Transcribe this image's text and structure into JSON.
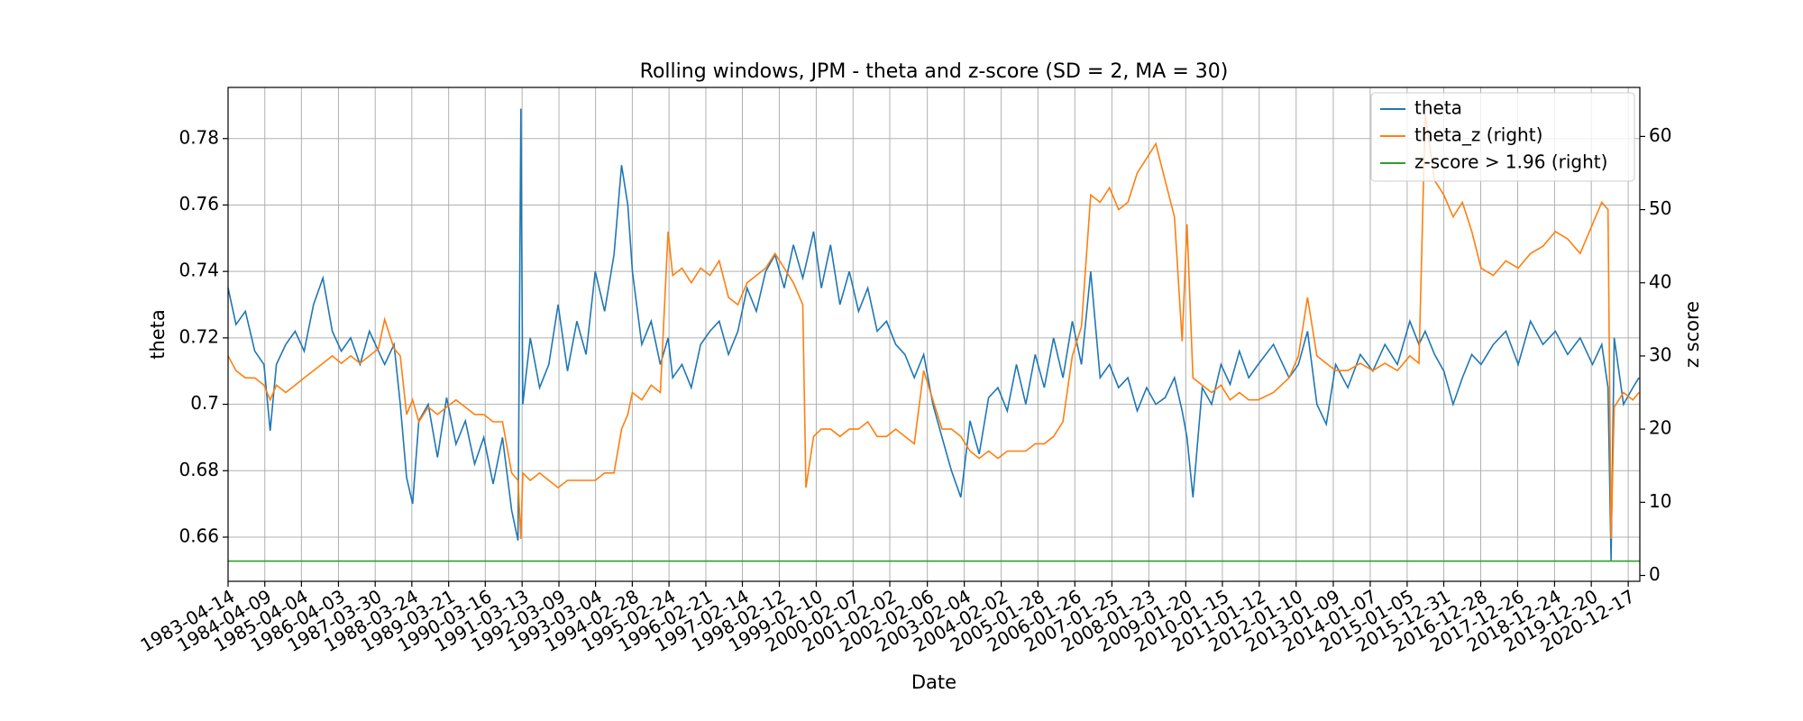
{
  "chart_data": {
    "type": "line",
    "title": "Rolling windows, JPM - theta and z-score (SD = 2, MA = 30)",
    "x_label": "Date",
    "y_label": "theta",
    "y2_label": "z score",
    "xlim": [
      "1983-04-14",
      "2021-04-10"
    ],
    "xticks": [
      "1983-04-14",
      "1984-04-09",
      "1985-04-04",
      "1986-04-03",
      "1987-03-30",
      "1988-03-24",
      "1989-03-21",
      "1990-03-16",
      "1991-03-13",
      "1992-03-09",
      "1993-03-04",
      "1994-02-28",
      "1995-02-24",
      "1996-02-21",
      "1997-02-14",
      "1998-02-12",
      "1999-02-10",
      "2000-02-07",
      "2001-02-02",
      "2002-02-06",
      "2003-02-04",
      "2004-02-02",
      "2005-01-28",
      "2006-01-26",
      "2007-01-25",
      "2008-01-23",
      "2009-01-20",
      "2010-01-15",
      "2011-01-12",
      "2012-01-10",
      "2013-01-09",
      "2014-01-07",
      "2015-01-05",
      "2015-12-31",
      "2016-12-28",
      "2017-12-26",
      "2018-12-24",
      "2019-12-20",
      "2020-12-17"
    ],
    "ylim": [
      0.6467,
      0.7954
    ],
    "yticks": [
      0.66,
      0.68,
      0.7,
      0.72,
      0.74,
      0.76,
      0.78
    ],
    "y2lim": [
      -0.8,
      66.7
    ],
    "y2ticks": [
      0,
      10,
      20,
      30,
      40,
      50,
      60
    ],
    "grid": true,
    "legend": "upper right",
    "x": [
      "1983-04-14",
      "1983-07-01",
      "1983-10-01",
      "1984-01-01",
      "1984-04-01",
      "1984-06-01",
      "1984-08-01",
      "1984-11-01",
      "1985-02-01",
      "1985-05-01",
      "1985-08-01",
      "1985-11-01",
      "1986-02-01",
      "1986-05-01",
      "1986-08-01",
      "1986-11-01",
      "1987-02-01",
      "1987-05-01",
      "1987-07-01",
      "1987-10-01",
      "1987-12-01",
      "1988-02-01",
      "1988-04-01",
      "1988-06-01",
      "1988-09-01",
      "1988-12-01",
      "1989-03-01",
      "1989-06-01",
      "1989-09-01",
      "1989-12-01",
      "1990-03-01",
      "1990-06-01",
      "1990-09-01",
      "1990-12-01",
      "1991-02-01",
      "1991-03-01",
      "1991-03-20",
      "1991-06-01",
      "1991-09-01",
      "1991-12-01",
      "1992-03-01",
      "1992-06-01",
      "1992-09-01",
      "1992-12-01",
      "1993-03-01",
      "1993-06-01",
      "1993-09-01",
      "1993-11-15",
      "1994-01-15",
      "1994-03-01",
      "1994-06-01",
      "1994-09-01",
      "1994-12-01",
      "1995-02-15",
      "1995-04-01",
      "1995-07-01",
      "1995-10-01",
      "1996-01-01",
      "1996-04-01",
      "1996-07-01",
      "1996-10-01",
      "1997-01-01",
      "1997-04-01",
      "1997-07-01",
      "1997-10-01",
      "1998-01-01",
      "1998-04-01",
      "1998-07-01",
      "1998-10-01",
      "1998-11-01",
      "1999-01-15",
      "1999-04-01",
      "1999-07-01",
      "1999-10-01",
      "2000-01-01",
      "2000-04-01",
      "2000-07-01",
      "2000-10-01",
      "2001-01-01",
      "2001-04-01",
      "2001-07-01",
      "2001-10-01",
      "2002-01-01",
      "2002-04-01",
      "2002-07-01",
      "2002-10-01",
      "2003-01-01",
      "2003-04-01",
      "2003-07-01",
      "2003-10-01",
      "2004-01-01",
      "2004-04-01",
      "2004-07-01",
      "2004-10-01",
      "2005-01-01",
      "2005-04-01",
      "2005-07-01",
      "2005-10-01",
      "2006-01-01",
      "2006-04-01",
      "2006-07-01",
      "2006-10-01",
      "2007-01-01",
      "2007-04-01",
      "2007-07-01",
      "2007-10-01",
      "2008-01-01",
      "2008-04-01",
      "2008-07-01",
      "2008-10-01",
      "2008-12-15",
      "2009-02-01",
      "2009-04-01",
      "2009-07-01",
      "2009-10-01",
      "2010-01-01",
      "2010-04-01",
      "2010-07-01",
      "2010-10-01",
      "2011-01-01",
      "2011-06-01",
      "2011-11-01",
      "2012-02-01",
      "2012-05-01",
      "2012-08-01",
      "2012-11-01",
      "2013-02-01",
      "2013-06-01",
      "2013-10-01",
      "2014-02-01",
      "2014-06-01",
      "2014-10-01",
      "2015-02-01",
      "2015-05-01",
      "2015-07-01",
      "2015-10-01",
      "2016-01-01",
      "2016-04-01",
      "2016-07-01",
      "2016-10-01",
      "2017-01-01",
      "2017-05-01",
      "2017-09-01",
      "2018-01-01",
      "2018-05-01",
      "2018-09-01",
      "2019-01-01",
      "2019-05-01",
      "2019-09-01",
      "2020-01-01",
      "2020-04-01",
      "2020-06-01",
      "2020-07-01",
      "2020-08-01",
      "2020-11-01",
      "2021-02-01",
      "2021-04-01"
    ],
    "series": [
      {
        "name": "theta",
        "color": "#1f77b4",
        "values": [
          0.735,
          0.724,
          0.728,
          0.716,
          0.712,
          0.692,
          0.712,
          0.718,
          0.722,
          0.716,
          0.73,
          0.738,
          0.722,
          0.716,
          0.72,
          0.712,
          0.722,
          0.716,
          0.712,
          0.718,
          0.7,
          0.678,
          0.67,
          0.695,
          0.7,
          0.684,
          0.702,
          0.688,
          0.695,
          0.682,
          0.69,
          0.676,
          0.69,
          0.668,
          0.659,
          0.789,
          0.7,
          0.72,
          0.705,
          0.712,
          0.73,
          0.71,
          0.725,
          0.715,
          0.74,
          0.728,
          0.745,
          0.772,
          0.76,
          0.74,
          0.718,
          0.725,
          0.712,
          0.72,
          0.708,
          0.712,
          0.705,
          0.718,
          0.722,
          0.725,
          0.715,
          0.722,
          0.735,
          0.728,
          0.74,
          0.745,
          0.735,
          0.748,
          0.738,
          0.742,
          0.752,
          0.735,
          0.748,
          0.73,
          0.74,
          0.728,
          0.735,
          0.722,
          0.725,
          0.718,
          0.715,
          0.708,
          0.715,
          0.7,
          0.69,
          0.68,
          0.672,
          0.695,
          0.685,
          0.702,
          0.705,
          0.698,
          0.712,
          0.7,
          0.715,
          0.705,
          0.72,
          0.708,
          0.725,
          0.712,
          0.74,
          0.708,
          0.712,
          0.705,
          0.708,
          0.698,
          0.705,
          0.7,
          0.702,
          0.708,
          0.698,
          0.69,
          0.672,
          0.705,
          0.7,
          0.712,
          0.706,
          0.716,
          0.708,
          0.712,
          0.718,
          0.708,
          0.712,
          0.722,
          0.7,
          0.694,
          0.712,
          0.705,
          0.715,
          0.71,
          0.718,
          0.712,
          0.725,
          0.718,
          0.722,
          0.715,
          0.71,
          0.7,
          0.708,
          0.715,
          0.712,
          0.718,
          0.722,
          0.712,
          0.725,
          0.718,
          0.722,
          0.715,
          0.72,
          0.712,
          0.718,
          0.705,
          0.653,
          0.72,
          0.7,
          0.705,
          0.708
        ]
      },
      {
        "name": "theta_z (right)",
        "color": "#ff7f0e",
        "axis": "y2",
        "values": [
          30,
          28,
          27,
          27,
          26,
          24,
          26,
          25,
          26,
          27,
          28,
          29,
          30,
          29,
          30,
          29,
          30,
          31,
          35,
          31,
          30,
          22,
          24,
          21,
          23,
          22,
          23,
          24,
          23,
          22,
          22,
          21,
          21,
          14,
          13,
          5,
          14,
          13,
          14,
          13,
          12,
          13,
          13,
          13,
          13,
          14,
          14,
          20,
          22,
          25,
          24,
          26,
          25,
          47,
          41,
          42,
          40,
          42,
          41,
          43,
          38,
          37,
          40,
          41,
          42,
          44,
          42,
          40,
          37,
          12,
          19,
          20,
          20,
          19,
          20,
          20,
          21,
          19,
          19,
          20,
          19,
          18,
          28,
          24,
          20,
          20,
          19,
          17,
          16,
          17,
          16,
          17,
          17,
          17,
          18,
          18,
          19,
          21,
          30,
          34,
          52,
          51,
          53,
          50,
          51,
          55,
          57,
          59,
          54,
          49,
          32,
          48,
          27,
          26,
          25,
          26,
          24,
          25,
          24,
          24,
          25,
          27,
          30,
          38,
          30,
          29,
          28,
          28,
          29,
          28,
          29,
          28,
          30,
          29,
          63,
          54,
          52,
          49,
          51,
          47,
          42,
          41,
          43,
          42,
          44,
          45,
          47,
          46,
          44,
          48,
          51,
          50,
          5,
          23,
          25,
          24,
          25
        ]
      },
      {
        "name": "z-score > 1.96 (right)",
        "color": "#2ca02c",
        "axis": "y2",
        "x": [
          "1983-04-14",
          "2021-04-10"
        ],
        "values": [
          1.96,
          1.96
        ]
      }
    ]
  }
}
